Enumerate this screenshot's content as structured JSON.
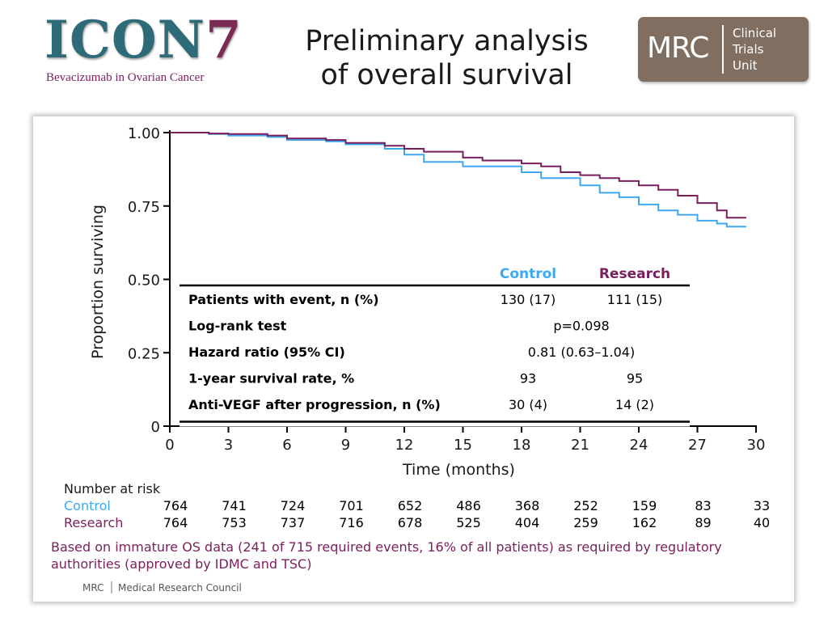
{
  "header": {
    "logo_main": "ICON",
    "logo_seven": "7",
    "logo_sub": "Bevacizumab in Ovarian Cancer",
    "title_line1": "Preliminary analysis",
    "title_line2": "of overall survival",
    "mrc_logo": {
      "mrc": "MRC",
      "line1": "Clinical",
      "line2": "Trials",
      "line3": "Unit"
    }
  },
  "colors": {
    "control": "#3da9f0",
    "research": "#7a1f5c",
    "note": "#7a1f5c",
    "mrc_brand": "#806f60"
  },
  "chart_data": {
    "type": "line",
    "xlabel": "Time (months)",
    "ylabel": "Proportion surviving",
    "xlim": [
      0,
      30
    ],
    "ylim": [
      0,
      1
    ],
    "x_ticks": [
      0,
      3,
      6,
      9,
      12,
      15,
      18,
      21,
      24,
      27,
      30
    ],
    "y_ticks": [
      {
        "value": 0,
        "label": "0"
      },
      {
        "value": 0.25,
        "label": "0.25"
      },
      {
        "value": 0.5,
        "label": "0.50"
      },
      {
        "value": 0.75,
        "label": "0.75"
      },
      {
        "value": 1.0,
        "label": "1.00"
      }
    ],
    "grid": false,
    "series": [
      {
        "name": "Control",
        "x": [
          0,
          2,
          3,
          5,
          6,
          8,
          9,
          11,
          12,
          13,
          15,
          18,
          19,
          21,
          22,
          23,
          24,
          25,
          26,
          27,
          28,
          28.5,
          29.5
        ],
        "y": [
          1.0,
          0.995,
          0.99,
          0.985,
          0.975,
          0.97,
          0.96,
          0.945,
          0.925,
          0.9,
          0.885,
          0.865,
          0.845,
          0.82,
          0.795,
          0.78,
          0.755,
          0.735,
          0.72,
          0.7,
          0.69,
          0.68,
          0.68
        ]
      },
      {
        "name": "Research",
        "x": [
          0,
          2,
          3,
          5,
          6,
          8,
          9,
          11,
          12,
          13,
          15,
          16,
          18,
          19,
          20,
          21,
          22,
          23,
          24,
          25,
          26,
          27,
          28,
          28.5,
          29.5
        ],
        "y": [
          1.0,
          0.997,
          0.995,
          0.99,
          0.98,
          0.975,
          0.965,
          0.955,
          0.945,
          0.935,
          0.915,
          0.905,
          0.895,
          0.885,
          0.865,
          0.855,
          0.845,
          0.835,
          0.82,
          0.805,
          0.785,
          0.76,
          0.735,
          0.71,
          0.71
        ]
      }
    ],
    "results_table": {
      "col_headers": [
        "Control",
        "Research"
      ],
      "rows": [
        {
          "label": "Patients with event, n (%)",
          "control": "130 (17)",
          "research": "111 (15)"
        },
        {
          "label": "Log-rank test",
          "combined": "p=0.098"
        },
        {
          "label": "Hazard ratio (95% CI)",
          "combined": "0.81 (0.63–1.04)"
        },
        {
          "label": "1-year survival rate, %",
          "control": "93",
          "research": "95"
        },
        {
          "label": "Anti-VEGF after progression, n (%)",
          "control": "30 (4)",
          "research": "14 (2)"
        }
      ]
    },
    "number_at_risk": {
      "title": "Number at risk",
      "times": [
        0,
        3,
        6,
        9,
        12,
        15,
        18,
        21,
        24,
        27,
        30
      ],
      "rows": [
        {
          "label": "Control",
          "values": [
            764,
            741,
            724,
            701,
            652,
            486,
            368,
            252,
            159,
            83,
            33
          ]
        },
        {
          "label": "Research",
          "values": [
            764,
            753,
            737,
            716,
            678,
            525,
            404,
            259,
            162,
            89,
            40
          ]
        }
      ]
    }
  },
  "footnote": {
    "line1": "Based on immature OS data (241 of 715 required events, 16% of all patients) as required by regulatory",
    "line2": "authorities (approved by IDMC and TSC)"
  },
  "footer": {
    "mrc": "MRC",
    "council": "Medical Research Council"
  }
}
